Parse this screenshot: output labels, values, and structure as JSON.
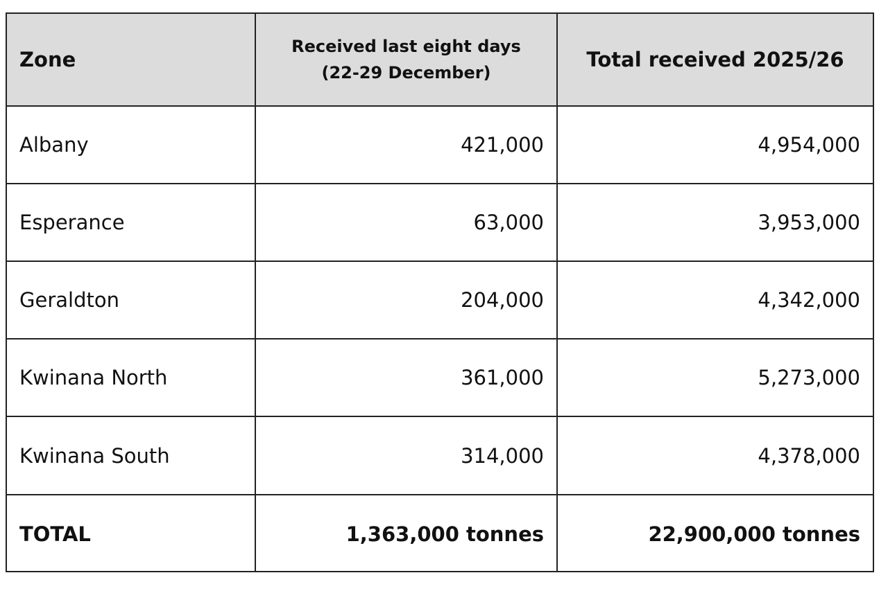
{
  "table": {
    "header": {
      "zone": "Zone",
      "recent": [
        "Received last eight days",
        "(22-29 December)"
      ],
      "total": "Total received 2025/26"
    },
    "rows": [
      [
        "Albany",
        "421,000",
        "4,954,000"
      ],
      [
        "Esperance",
        "63,000",
        "3,953,000"
      ],
      [
        "Geraldton",
        "204,000",
        "4,342,000"
      ],
      [
        "Kwinana North",
        "361,000",
        "5,273,000"
      ],
      [
        "Kwinana South",
        "314,000",
        "4,378,000"
      ]
    ],
    "footer": [
      "TOTAL",
      "1,363,000 tonnes",
      "22,900,000 tonnes"
    ]
  }
}
